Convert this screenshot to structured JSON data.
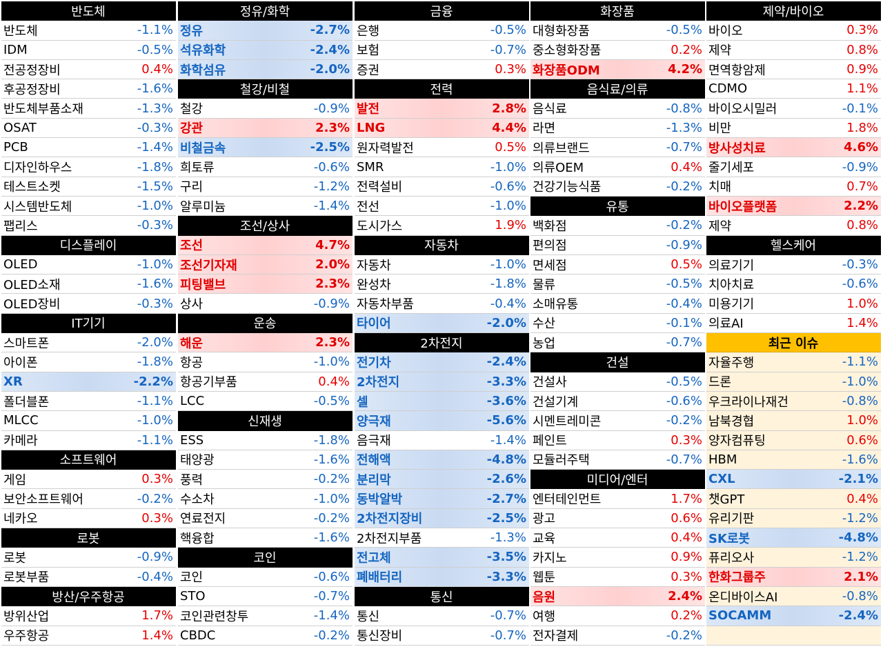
{
  "colors": {
    "up": "#e60000",
    "down": "#1565c0",
    "header_bg": "#000000",
    "issue_header_bg": "#ffc000",
    "issue_bg": "#fff3dc"
  },
  "columns": [
    [
      {
        "t": "h",
        "name": "반도체"
      },
      {
        "name": "반도체",
        "val": "-1.1%"
      },
      {
        "name": "IDM",
        "val": "-0.5%"
      },
      {
        "name": "전공정장비",
        "val": "0.4%"
      },
      {
        "name": "후공정장비",
        "val": "-1.6%"
      },
      {
        "name": "반도체부품소재",
        "val": "-1.3%"
      },
      {
        "name": "OSAT",
        "val": "-0.3%"
      },
      {
        "name": "PCB",
        "val": "-1.4%"
      },
      {
        "name": "디자인하우스",
        "val": "-1.8%"
      },
      {
        "name": "테스트소켓",
        "val": "-1.5%"
      },
      {
        "name": "시스템반도체",
        "val": "-1.0%"
      },
      {
        "name": "팹리스",
        "val": "-0.3%"
      },
      {
        "t": "h",
        "name": "디스플레이"
      },
      {
        "name": "OLED",
        "val": "-1.0%"
      },
      {
        "name": "OLED소재",
        "val": "-1.6%"
      },
      {
        "name": "OLED장비",
        "val": "-0.3%"
      },
      {
        "t": "h",
        "name": "IT기기"
      },
      {
        "name": "스마트폰",
        "val": "-2.0%"
      },
      {
        "name": "아이폰",
        "val": "-1.8%"
      },
      {
        "name": "XR",
        "val": "-2.2%",
        "hl": true
      },
      {
        "name": "폴더블폰",
        "val": "-1.1%"
      },
      {
        "name": "MLCC",
        "val": "-1.0%"
      },
      {
        "name": "카메라",
        "val": "-1.1%"
      },
      {
        "t": "h",
        "name": "소프트웨어"
      },
      {
        "name": "게임",
        "val": "0.3%"
      },
      {
        "name": "보안소프트웨어",
        "val": "-0.2%"
      },
      {
        "name": "네카오",
        "val": "0.3%"
      },
      {
        "t": "h",
        "name": "로봇"
      },
      {
        "name": "로봇",
        "val": "-0.9%"
      },
      {
        "name": "로봇부품",
        "val": "-0.4%"
      },
      {
        "t": "h",
        "name": "방산/우주항공"
      },
      {
        "name": "방위산업",
        "val": "1.7%"
      },
      {
        "name": "우주항공",
        "val": "1.4%"
      }
    ],
    [
      {
        "t": "h",
        "name": "정유/화학"
      },
      {
        "name": "정유",
        "val": "-2.7%",
        "hl": true
      },
      {
        "name": "석유화학",
        "val": "-2.4%",
        "hl": true
      },
      {
        "name": "화학섬유",
        "val": "-2.0%",
        "hl": true
      },
      {
        "t": "h",
        "name": "철강/비철"
      },
      {
        "name": "철강",
        "val": "-0.9%"
      },
      {
        "name": "강관",
        "val": "2.3%",
        "hl": true
      },
      {
        "name": "비철금속",
        "val": "-2.5%",
        "hl": true
      },
      {
        "name": "희토류",
        "val": "-0.6%"
      },
      {
        "name": "구리",
        "val": "-1.2%"
      },
      {
        "name": "알루미늄",
        "val": "-1.4%"
      },
      {
        "t": "h",
        "name": "조선/상사"
      },
      {
        "name": "조선",
        "val": "4.7%",
        "hl": true
      },
      {
        "name": "조선기자재",
        "val": "2.0%",
        "hl": true
      },
      {
        "name": "피팅밸브",
        "val": "2.3%",
        "hl": true
      },
      {
        "name": "상사",
        "val": "-0.9%"
      },
      {
        "t": "h",
        "name": "운송"
      },
      {
        "name": "해운",
        "val": "2.3%",
        "hl": true
      },
      {
        "name": "항공",
        "val": "-1.0%"
      },
      {
        "name": "항공기부품",
        "val": "0.4%"
      },
      {
        "name": "LCC",
        "val": "-0.5%"
      },
      {
        "t": "h",
        "name": "신재생"
      },
      {
        "name": "ESS",
        "val": "-1.8%"
      },
      {
        "name": "태양광",
        "val": "-1.6%"
      },
      {
        "name": "풍력",
        "val": "-0.2%"
      },
      {
        "name": "수소차",
        "val": "-1.0%"
      },
      {
        "name": "연료전지",
        "val": "-0.2%"
      },
      {
        "name": "핵융합",
        "val": "-1.6%"
      },
      {
        "t": "h",
        "name": "코인"
      },
      {
        "name": "코인",
        "val": "-0.6%"
      },
      {
        "name": "STO",
        "val": "-0.7%"
      },
      {
        "name": "코인관련창투",
        "val": "-1.4%"
      },
      {
        "name": "CBDC",
        "val": "-0.2%"
      }
    ],
    [
      {
        "t": "h",
        "name": "금융"
      },
      {
        "name": "은행",
        "val": "-0.5%"
      },
      {
        "name": "보험",
        "val": "-0.7%"
      },
      {
        "name": "증권",
        "val": "0.3%"
      },
      {
        "t": "h",
        "name": "전력"
      },
      {
        "name": "발전",
        "val": "2.8%",
        "hl": true
      },
      {
        "name": "LNG",
        "val": "4.4%",
        "hl": true
      },
      {
        "name": "원자력발전",
        "val": "0.5%"
      },
      {
        "name": "SMR",
        "val": "-1.0%"
      },
      {
        "name": "전력설비",
        "val": "-0.6%"
      },
      {
        "name": "전선",
        "val": "-1.0%"
      },
      {
        "name": "도시가스",
        "val": "1.9%"
      },
      {
        "t": "h",
        "name": "자동차"
      },
      {
        "name": "자동차",
        "val": "-1.0%"
      },
      {
        "name": "완성차",
        "val": "-1.8%"
      },
      {
        "name": "자동차부품",
        "val": "-0.4%"
      },
      {
        "name": "타이어",
        "val": "-2.0%",
        "hl": true
      },
      {
        "t": "h",
        "name": "2차전지"
      },
      {
        "name": "전기차",
        "val": "-2.4%",
        "hl": true
      },
      {
        "name": "2차전지",
        "val": "-3.3%",
        "hl": true
      },
      {
        "name": "셀",
        "val": "-3.6%",
        "hl": true
      },
      {
        "name": "양극재",
        "val": "-5.6%",
        "hl": true
      },
      {
        "name": "음극재",
        "val": "-1.4%"
      },
      {
        "name": "전해액",
        "val": "-4.8%",
        "hl": true
      },
      {
        "name": "분리막",
        "val": "-2.6%",
        "hl": true
      },
      {
        "name": "동박알박",
        "val": "-2.7%",
        "hl": true
      },
      {
        "name": "2차전지장비",
        "val": "-2.5%",
        "hl": true
      },
      {
        "name": "2차전지부품",
        "val": "-1.3%"
      },
      {
        "name": "전고체",
        "val": "-3.5%",
        "hl": true
      },
      {
        "name": "폐배터리",
        "val": "-3.3%",
        "hl": true
      },
      {
        "t": "h",
        "name": "통신"
      },
      {
        "name": "통신",
        "val": "-0.7%"
      },
      {
        "name": "통신장비",
        "val": "-0.7%"
      }
    ],
    [
      {
        "t": "h",
        "name": "화장품"
      },
      {
        "name": "대형화장품",
        "val": "-0.5%"
      },
      {
        "name": "중소형화장품",
        "val": "0.2%"
      },
      {
        "name": "화장품ODM",
        "val": "4.2%",
        "hl": true
      },
      {
        "t": "h",
        "name": "음식료/의류"
      },
      {
        "name": "음식료",
        "val": "-0.8%"
      },
      {
        "name": "라면",
        "val": "-1.3%"
      },
      {
        "name": "의류브랜드",
        "val": "-0.7%"
      },
      {
        "name": "의류OEM",
        "val": "0.4%"
      },
      {
        "name": "건강기능식품",
        "val": "-0.2%"
      },
      {
        "t": "h",
        "name": "유통"
      },
      {
        "name": "백화점",
        "val": "-0.2%"
      },
      {
        "name": "편의점",
        "val": "-0.9%"
      },
      {
        "name": "면세점",
        "val": "0.5%"
      },
      {
        "name": "물류",
        "val": "-0.5%"
      },
      {
        "name": "소매유통",
        "val": "-0.4%"
      },
      {
        "name": "수산",
        "val": "-0.1%"
      },
      {
        "name": "농업",
        "val": "-0.7%"
      },
      {
        "t": "h",
        "name": "건설"
      },
      {
        "name": "건설사",
        "val": "-0.5%"
      },
      {
        "name": "건설기계",
        "val": "-0.6%"
      },
      {
        "name": "시멘트레미콘",
        "val": "-0.2%"
      },
      {
        "name": "페인트",
        "val": "0.3%"
      },
      {
        "name": "모듈러주택",
        "val": "-0.7%"
      },
      {
        "t": "h",
        "name": "미디어/엔터"
      },
      {
        "name": "엔터테인먼트",
        "val": "1.7%"
      },
      {
        "name": "광고",
        "val": "0.6%"
      },
      {
        "name": "교육",
        "val": "0.4%"
      },
      {
        "name": "카지노",
        "val": "0.9%"
      },
      {
        "name": "웹툰",
        "val": "0.3%"
      },
      {
        "name": "음원",
        "val": "2.4%",
        "hl": true
      },
      {
        "name": "여행",
        "val": "0.2%"
      },
      {
        "name": "전자결제",
        "val": "-0.2%"
      }
    ],
    [
      {
        "t": "h",
        "name": "제약/바이오"
      },
      {
        "name": "바이오",
        "val": "0.3%"
      },
      {
        "name": "제약",
        "val": "0.8%"
      },
      {
        "name": "면역항암제",
        "val": "0.9%"
      },
      {
        "name": "CDMO",
        "val": "1.1%"
      },
      {
        "name": "바이오시밀러",
        "val": "-0.1%"
      },
      {
        "name": "비만",
        "val": "1.8%"
      },
      {
        "name": "방사성치료",
        "val": "4.6%",
        "hl": true
      },
      {
        "name": "줄기세포",
        "val": "-0.9%"
      },
      {
        "name": "치매",
        "val": "0.7%"
      },
      {
        "name": "바이오플랫폼",
        "val": "2.2%",
        "hl": true
      },
      {
        "name": "제약",
        "val": "0.8%"
      },
      {
        "t": "h",
        "name": "헬스케어"
      },
      {
        "name": "의료기기",
        "val": "-0.3%"
      },
      {
        "name": "치아치료",
        "val": "-0.6%"
      },
      {
        "name": "미용기기",
        "val": "1.0%"
      },
      {
        "name": "의료AI",
        "val": "1.4%"
      },
      {
        "t": "hs",
        "name": "최근 이슈"
      },
      {
        "name": "자율주행",
        "val": "-1.1%",
        "issue": true
      },
      {
        "name": "드론",
        "val": "-1.0%",
        "issue": true
      },
      {
        "name": "우크라이나재건",
        "val": "-0.8%",
        "issue": true
      },
      {
        "name": "남북경협",
        "val": "1.0%",
        "issue": true
      },
      {
        "name": "양자컴퓨팅",
        "val": "0.6%",
        "issue": true
      },
      {
        "name": "HBM",
        "val": "-1.6%",
        "issue": true
      },
      {
        "name": "CXL",
        "val": "-2.1%",
        "issue": true,
        "hl": true
      },
      {
        "name": "챗GPT",
        "val": "0.4%",
        "issue": true
      },
      {
        "name": "유리기판",
        "val": "-1.2%",
        "issue": true
      },
      {
        "name": "SK로봇",
        "val": "-4.8%",
        "issue": true,
        "hl": true
      },
      {
        "name": "퓨리오사",
        "val": "-1.2%",
        "issue": true
      },
      {
        "name": "한화그룹주",
        "val": "2.1%",
        "issue": true,
        "hl": true
      },
      {
        "name": "온디바이스AI",
        "val": "-0.8%",
        "issue": true
      },
      {
        "name": "SOCAMM",
        "val": "-2.4%",
        "issue": true,
        "hl": true
      },
      {
        "t": "e",
        "issue": true
      }
    ]
  ]
}
